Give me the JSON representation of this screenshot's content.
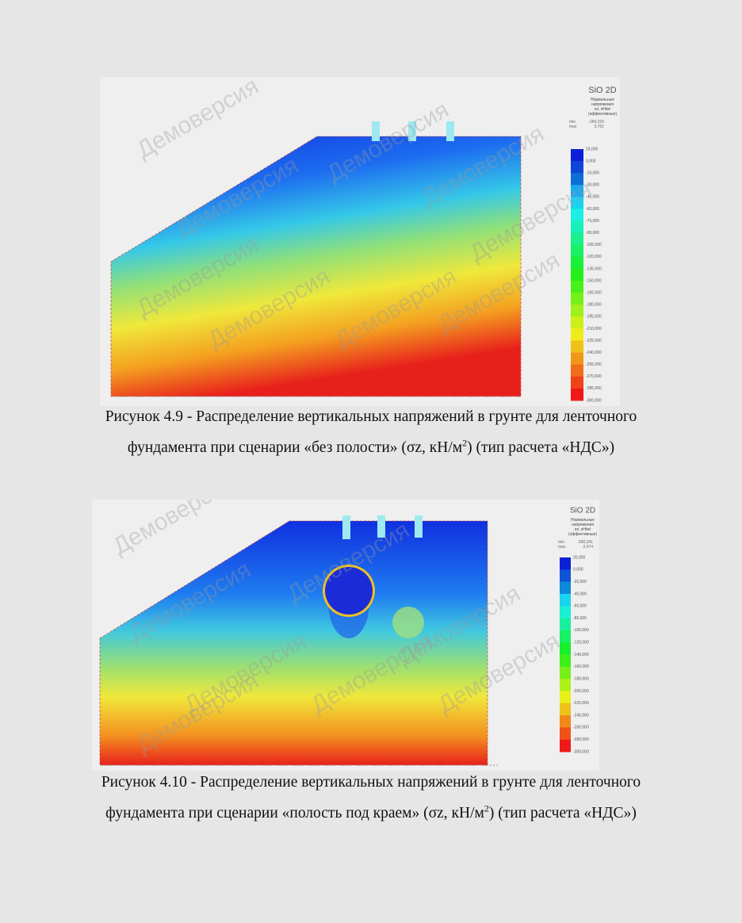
{
  "figures": [
    {
      "app": "SiO 2D",
      "legend_title": [
        "Нормальные",
        "напряжения",
        "σz, кН/м²",
        "(эффективные)"
      ],
      "min_label": "min",
      "min_value": "-284,220",
      "max_label": "max",
      "max_value": "3,761",
      "watermark": "Демоверсия",
      "legend_ticks": [
        "15,000",
        "0,000",
        "-15,000",
        "-30,000",
        "-45,000",
        "-60,000",
        "-75,000",
        "-90,000",
        "-105,000",
        "-120,000",
        "-135,000",
        "-150,000",
        "-165,000",
        "-180,000",
        "-195,000",
        "-210,000",
        "-225,000",
        "-240,000",
        "-255,000",
        "-270,000",
        "-285,000",
        "-300,000"
      ],
      "caption": {
        "before": "Рисунок 4.9 - Распределение вертикальных напряжений в грунте для ленточного фундамента при сценарии «без полости» (σz, кН/м",
        "sup": "2",
        "after": ") (тип расчета «НДС»)"
      }
    },
    {
      "app": "SiO 2D",
      "legend_title": [
        "Нормальные",
        "напряжения",
        "σz, кН/м²",
        "(эффективные)"
      ],
      "min_label": "min",
      "min_value": "-280,341",
      "max_label": "max",
      "max_value": "2,474",
      "watermark": "Демоверсия",
      "legend_ticks": [
        "20,000",
        "0,000",
        "-20,000",
        "-40,000",
        "-60,000",
        "-80,000",
        "-100,000",
        "-120,000",
        "-140,000",
        "-160,000",
        "-180,000",
        "-200,000",
        "-220,000",
        "-240,000",
        "-260,000",
        "-280,000",
        "-300,000"
      ],
      "caption": {
        "before": "Рисунок 4.10 - Распределение вертикальных напряжений в грунте для ленточного фундамента при сценарии «полость под краем» (σz, кН/м",
        "sup": "2",
        "after": ") (тип расчета «НДС»)"
      }
    }
  ]
}
